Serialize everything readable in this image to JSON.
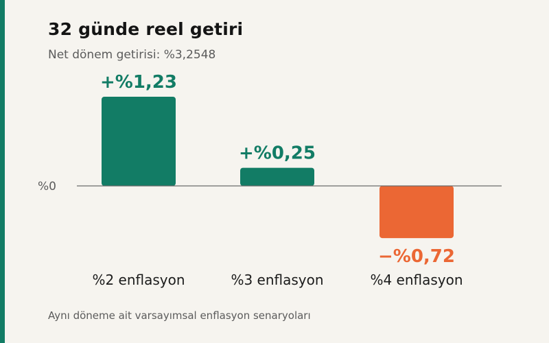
{
  "title": "32 günde reel getiri",
  "subtitle": "Net dönem getirisi: %3,2548",
  "footnote": "Aynı döneme ait varsayımsal enflasyon senaryoları",
  "colors": {
    "accent": "#127c65",
    "positive": "#127c65",
    "negative": "#eb6734",
    "background": "#f6f4ef"
  },
  "chart_data": {
    "type": "bar",
    "title": "32 günde reel getiri",
    "subtitle": "Net dönem getirisi: %3,2548",
    "categories": [
      "%2 enflasyon",
      "%3 enflasyon",
      "%4 enflasyon"
    ],
    "values": [
      1.23,
      0.25,
      -0.72
    ],
    "value_labels": [
      "+%1,23",
      "+%0,25",
      "−%0,72"
    ],
    "zero_label": "%0",
    "grid": false,
    "legend": "none"
  }
}
